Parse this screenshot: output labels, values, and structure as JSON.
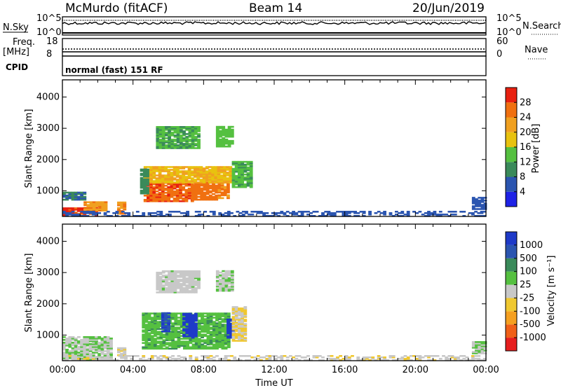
{
  "header": {
    "station": "McMurdo (fitACF)",
    "beam": "Beam 14",
    "date": "20/Jun/2019"
  },
  "noise_panel": {
    "left_label": "N.Sky",
    "right_label": "N.Search",
    "left_ticks": [
      "10^5",
      "10^0"
    ],
    "right_ticks": [
      "10^5",
      "10^0"
    ]
  },
  "freq_panel": {
    "left_label_line1": "Freq.",
    "left_label_line2": "[MHz]",
    "right_label": "Nave",
    "left_ticks": [
      "18",
      "8"
    ],
    "right_ticks": [
      "60",
      "0"
    ]
  },
  "cpid": {
    "label": "CPID",
    "text": "normal (fast) 151 RF"
  },
  "colors": {
    "power": [
      "#1e22e6",
      "#2b55b0",
      "#3a8a5a",
      "#55c040",
      "#e8c20f",
      "#f0a020",
      "#f07010",
      "#e82010"
    ],
    "velocity": [
      "#e61e1e",
      "#f06018",
      "#f5a020",
      "#f0c830",
      "#c8c8c8",
      "#55c040",
      "#3a8a5a",
      "#2b55b0",
      "#1e3ac8"
    ]
  },
  "chart_data": [
    {
      "type": "heatmap",
      "name": "power",
      "ylabel": "Slant Range [km]",
      "yticks": [
        "1000",
        "2000",
        "3000",
        "4000"
      ],
      "ylim": [
        180,
        4550
      ],
      "xlim_hours": [
        0,
        24
      ],
      "colorbar": {
        "label": "Power [dB]",
        "ticks": [
          "4",
          "8",
          "12",
          "16",
          "20",
          "24",
          "28"
        ],
        "range": [
          0,
          32
        ]
      },
      "regions": [
        {
          "t0": 4.6,
          "t1": 7.3,
          "r0": 650,
          "r1": 1250,
          "value": 27
        },
        {
          "t0": 7.3,
          "t1": 8.7,
          "r0": 700,
          "r1": 1250,
          "value": 26
        },
        {
          "t0": 8.8,
          "t1": 9.4,
          "r0": 750,
          "r1": 1400,
          "value": 25
        },
        {
          "t0": 4.6,
          "t1": 9.6,
          "r0": 1250,
          "r1": 1750,
          "value": 20
        },
        {
          "t0": 4.4,
          "t1": 4.9,
          "r0": 900,
          "r1": 1700,
          "value": 10
        },
        {
          "t0": 9.6,
          "t1": 10.6,
          "r0": 1100,
          "r1": 1950,
          "value": 13
        },
        {
          "t0": 5.3,
          "t1": 7.8,
          "r0": 2350,
          "r1": 3050,
          "value": 12
        },
        {
          "t0": 8.7,
          "t1": 9.6,
          "r0": 2400,
          "r1": 3050,
          "value": 14
        },
        {
          "t0": 0.0,
          "t1": 1.9,
          "r0": 200,
          "r1": 440,
          "value": 29
        },
        {
          "t0": 1.2,
          "t1": 2.4,
          "r0": 350,
          "r1": 650,
          "value": 23
        },
        {
          "t0": 0.0,
          "t1": 1.2,
          "r0": 700,
          "r1": 950,
          "value": 8
        },
        {
          "t0": 3.1,
          "t1": 3.5,
          "r0": 250,
          "r1": 650,
          "value": 24
        },
        {
          "t0": 23.2,
          "t1": 24.0,
          "r0": 400,
          "r1": 800,
          "value": 6
        },
        {
          "t0": 0.0,
          "t1": 24.0,
          "r0": 180,
          "r1": 330,
          "value": 6
        }
      ]
    },
    {
      "type": "heatmap",
      "name": "velocity",
      "ylabel": "Slant Range [km]",
      "yticks": [
        "1000",
        "2000",
        "3000",
        "4000"
      ],
      "ylim": [
        180,
        4550
      ],
      "xlim_hours": [
        0,
        24
      ],
      "xticks": [
        "00:00",
        "04:00",
        "08:00",
        "12:00",
        "16:00",
        "20:00",
        "00:00"
      ],
      "xlabel": "Time UT",
      "colorbar": {
        "label": "Velocity [m s⁻¹]",
        "ticks": [
          "-1000",
          "-500",
          "-100",
          "-25",
          "25",
          "100",
          "500",
          "1000"
        ],
        "range": [
          -1200,
          1200
        ]
      },
      "regions": [
        {
          "t0": 4.5,
          "t1": 9.4,
          "r0": 550,
          "r1": 1700,
          "value": 300
        },
        {
          "t0": 6.8,
          "t1": 7.5,
          "r0": 900,
          "r1": 1700,
          "value": 1100
        },
        {
          "t0": 5.6,
          "t1": 6.0,
          "r0": 1100,
          "r1": 1700,
          "value": 900
        },
        {
          "t0": 9.3,
          "t1": 9.7,
          "r0": 900,
          "r1": 1500,
          "value": 1100
        },
        {
          "t0": 9.6,
          "t1": 10.4,
          "r0": 800,
          "r1": 1900,
          "value": -150
        },
        {
          "t0": 5.3,
          "t1": 7.8,
          "r0": 2350,
          "r1": 3050,
          "value": 15
        },
        {
          "t0": 8.7,
          "t1": 9.6,
          "r0": 2400,
          "r1": 3050,
          "value": 110
        },
        {
          "t0": 0.0,
          "t1": 2.8,
          "r0": 200,
          "r1": 950,
          "value": 120
        },
        {
          "t0": 3.1,
          "t1": 3.5,
          "r0": 250,
          "r1": 600,
          "value": -120
        },
        {
          "t0": 23.2,
          "t1": 24.0,
          "r0": 400,
          "r1": 800,
          "value": 120
        },
        {
          "t0": 0.0,
          "t1": 24.0,
          "r0": 180,
          "r1": 320,
          "value": -40
        }
      ]
    }
  ]
}
